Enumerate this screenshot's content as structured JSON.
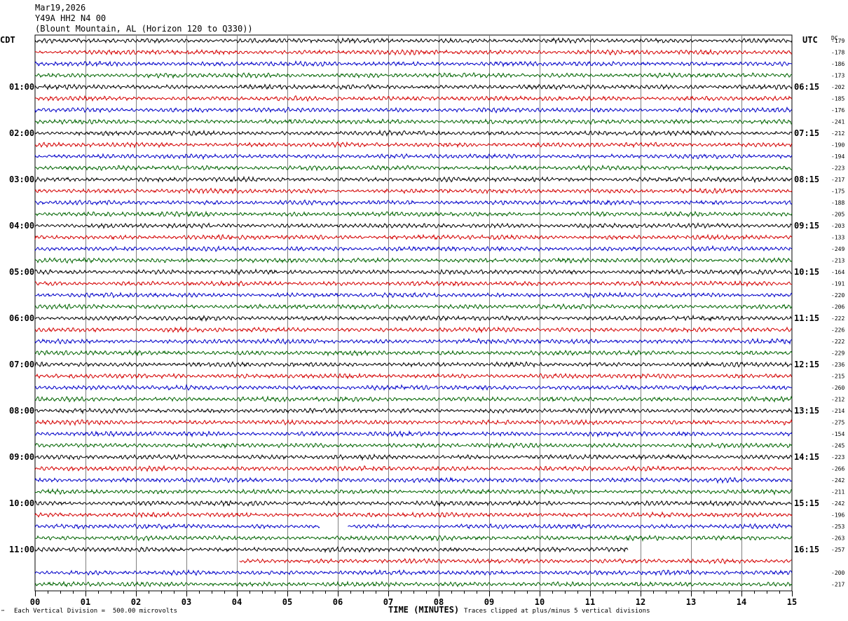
{
  "header": {
    "date": "Mar19,2026",
    "station": "Y49A HH2 N4 00",
    "location": "(Blount Mountain, AL (Horizon 120 to Q330))"
  },
  "left_tz": "CDT",
  "right_tz": "UTC",
  "dc_label": "DC",
  "footer": {
    "scale": "Each Vertical Division =  500.00 microvolts",
    "xlabel": "TIME (MINUTES)",
    "clip_note": "Traces clipped at plus/minus 5 vertical divisions",
    "corner_mark": "™"
  },
  "colors": {
    "line_cycle": [
      "#000000",
      "#d40000",
      "#0000c8",
      "#006400"
    ],
    "grid": "#808080"
  },
  "chart_data": {
    "type": "line",
    "title": "",
    "xlabel": "TIME (MINUTES)",
    "ylabel": "",
    "xlim": [
      0,
      15
    ],
    "x_ticks": [
      "00",
      "01",
      "02",
      "03",
      "04",
      "05",
      "06",
      "07",
      "08",
      "09",
      "10",
      "11",
      "12",
      "13",
      "14",
      "15"
    ],
    "grid": true,
    "trace_count": 48,
    "traces_per_hour": 4,
    "left_hour_labels": [
      "01:00",
      "02:00",
      "03:00",
      "04:00",
      "05:00",
      "06:00",
      "07:00",
      "08:00",
      "09:00",
      "10:00",
      "11:00"
    ],
    "right_hour_labels": [
      "06:15",
      "07:15",
      "08:15",
      "09:15",
      "10:15",
      "11:15",
      "12:15",
      "13:15",
      "14:15",
      "15:15",
      "16:15"
    ],
    "dc_offsets": [
      "-179",
      "-178",
      "-186",
      "-173",
      "-202",
      "-185",
      "-176",
      "-241",
      "-212",
      "-190",
      "-194",
      "-223",
      "-217",
      "-175",
      "-188",
      "-205",
      "-203",
      "-133",
      "-249",
      "-213",
      "-164",
      "-191",
      "-220",
      "-206",
      "-222",
      "-226",
      "-222",
      "-229",
      "-236",
      "-215",
      "-260",
      "-212",
      "-214",
      "-275",
      "-154",
      "-245",
      "-223",
      "-266",
      "-242",
      "-211",
      "-242",
      "-196",
      "-253",
      "-263",
      "-257",
      "",
      "-200",
      "-217"
    ],
    "trace_spans": {
      "42": [
        [
          0,
          5.65
        ],
        [
          6.2,
          15
        ]
      ],
      "44": [
        [
          0,
          11.75
        ]
      ],
      "45": [
        [
          4.05,
          15
        ]
      ]
    }
  }
}
